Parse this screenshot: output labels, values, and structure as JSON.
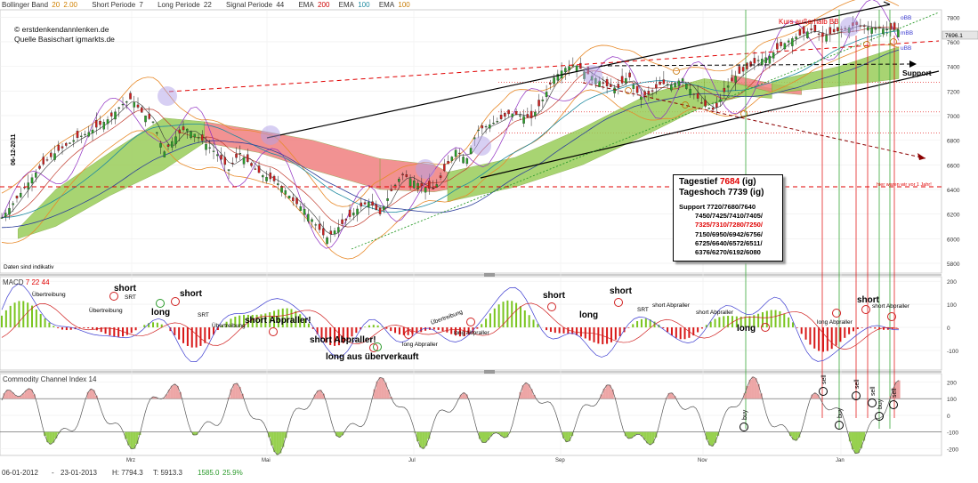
{
  "header": {
    "bollinger": {
      "label": "Bollinger Band",
      "v1": "20",
      "v2": "2.00"
    },
    "short_periode": {
      "label": "Short Periode",
      "v": "7"
    },
    "long_periode": {
      "label": "Long Periode",
      "v": "22"
    },
    "signal_periode": {
      "label": "Signal Periode",
      "v": "44"
    },
    "ema1": {
      "label": "EMA",
      "v": "200"
    },
    "ema2": {
      "label": "EMA",
      "v": "100"
    },
    "ema3": {
      "label": "EMA",
      "v": "100"
    }
  },
  "credit": {
    "line1": "© erstdenkendannlenken.de",
    "line2": "Quelle Basischart igmarkts.de"
  },
  "main_annotations": {
    "kurs_ausserhalb": "Kurs außerhalb BB",
    "support": "Support",
    "hier_waren": "hier waren wir vor 1 Jahr!",
    "daten": "Daten sind indikativ",
    "date_vertical": "06-12-2011",
    "obb": "oBB",
    "mbb": "mBB",
    "ubb": "uBB",
    "last_price": "7696.1"
  },
  "infobox": {
    "tagestief_label": "Tagestief",
    "tagestief_value": "7684",
    "tagestief_suffix": "(ig)",
    "tageshoch": "Tageshoch 7739 (ig)",
    "support_lines": [
      "Support 7720/7680/7640",
      "7450/7425/7410/7405/",
      "7325/7310/7280/7250/",
      "7150/6950/6942/6756/",
      "6725/6640/6572/6511/",
      "6376/6270/6192/6080"
    ]
  },
  "macd_title": {
    "label": "MACD",
    "v1": "7",
    "v2": "22",
    "v3": "44"
  },
  "macd_annotations": [
    {
      "text": "short",
      "big": true
    },
    {
      "text": "Übertreibung",
      "big": false
    },
    {
      "text": "short",
      "big": true
    },
    {
      "text": "SRT",
      "big": false
    },
    {
      "text": "Übertreibung",
      "big": false
    },
    {
      "text": "long",
      "big": true
    },
    {
      "text": "SRT",
      "big": false
    },
    {
      "text": "Übertreibung",
      "big": false
    },
    {
      "text": "short Abpraller!",
      "big": true
    },
    {
      "text": "short Abpraller!",
      "big": true
    },
    {
      "text": "long aus überverkauft",
      "big": true
    },
    {
      "text": "long Abpraller",
      "big": false
    },
    {
      "text": "Übertreibung",
      "big": false
    },
    {
      "text": "long Abpraller",
      "big": false
    },
    {
      "text": "short",
      "big": true
    },
    {
      "text": "long",
      "big": true
    },
    {
      "text": "short",
      "big": true
    },
    {
      "text": "SRT",
      "big": false
    },
    {
      "text": "short Abpraller",
      "big": false
    },
    {
      "text": "short Abpraller",
      "big": false
    },
    {
      "text": "long",
      "big": true
    },
    {
      "text": "long Abpraller",
      "big": false
    },
    {
      "text": "short",
      "big": true
    },
    {
      "text": "short Abpraller",
      "big": false
    }
  ],
  "cci_title": {
    "label": "Commodity Channel Index",
    "v": "14"
  },
  "cci_annotations": [
    "buy",
    "buy",
    "sell",
    "sell",
    "sell",
    "buy",
    "sell"
  ],
  "status": {
    "start": "06-01-2012",
    "sep": "-",
    "end": "23-01-2013",
    "h": "H: 7794.3",
    "t": "T: 5913.3",
    "chg": "1585.0",
    "pct": "25.9%"
  },
  "chart_data": [
    {
      "type": "line",
      "name": "price",
      "x_ticks": [
        "Mrz",
        "Mai",
        "Jul",
        "Sep",
        "Nov",
        "Jan"
      ],
      "yticks": [
        5800,
        6000,
        6200,
        6400,
        6600,
        6800,
        7000,
        7200,
        7400,
        7600,
        7800
      ],
      "ylim": [
        5720,
        7860
      ],
      "close_path": [
        [
          0,
          6170
        ],
        [
          4,
          6280
        ],
        [
          8,
          6400
        ],
        [
          12,
          6520
        ],
        [
          16,
          6620
        ],
        [
          20,
          6700
        ],
        [
          24,
          6760
        ],
        [
          28,
          6820
        ],
        [
          32,
          6860
        ],
        [
          36,
          6920
        ],
        [
          40,
          6980
        ],
        [
          44,
          7080
        ],
        [
          48,
          7140
        ],
        [
          52,
          7020
        ],
        [
          56,
          6950
        ],
        [
          60,
          6700
        ],
        [
          64,
          6820
        ],
        [
          68,
          6900
        ],
        [
          72,
          6840
        ],
        [
          76,
          6760
        ],
        [
          80,
          6680
        ],
        [
          84,
          6560
        ],
        [
          88,
          6700
        ],
        [
          92,
          6600
        ],
        [
          96,
          6520
        ],
        [
          100,
          6480
        ],
        [
          104,
          6420
        ],
        [
          108,
          6300
        ],
        [
          112,
          6240
        ],
        [
          116,
          6120
        ],
        [
          120,
          6000
        ],
        [
          124,
          6080
        ],
        [
          128,
          6160
        ],
        [
          132,
          6250
        ],
        [
          136,
          6300
        ],
        [
          140,
          6200
        ],
        [
          144,
          6380
        ],
        [
          148,
          6520
        ],
        [
          152,
          6480
        ],
        [
          156,
          6420
        ],
        [
          160,
          6400
        ],
        [
          164,
          6560
        ],
        [
          168,
          6720
        ],
        [
          172,
          6640
        ],
        [
          176,
          6880
        ],
        [
          180,
          6920
        ],
        [
          184,
          6960
        ],
        [
          188,
          7020
        ],
        [
          192,
          7000
        ],
        [
          196,
          6980
        ],
        [
          200,
          7120
        ],
        [
          204,
          7300
        ],
        [
          208,
          7380
        ],
        [
          212,
          7420
        ],
        [
          216,
          7350
        ],
        [
          220,
          7300
        ],
        [
          224,
          7240
        ],
        [
          228,
          7220
        ],
        [
          232,
          7330
        ],
        [
          236,
          7150
        ],
        [
          240,
          7180
        ],
        [
          244,
          7260
        ],
        [
          248,
          7250
        ],
        [
          252,
          7300
        ],
        [
          256,
          7180
        ],
        [
          260,
          7080
        ],
        [
          264,
          7040
        ],
        [
          268,
          7220
        ],
        [
          272,
          7330
        ],
        [
          276,
          7380
        ],
        [
          280,
          7450
        ],
        [
          284,
          7480
        ],
        [
          288,
          7560
        ],
        [
          292,
          7620
        ],
        [
          296,
          7660
        ],
        [
          300,
          7700
        ],
        [
          304,
          7640
        ],
        [
          308,
          7680
        ],
        [
          312,
          7700
        ],
        [
          316,
          7740
        ],
        [
          320,
          7720
        ],
        [
          324,
          7710
        ],
        [
          328,
          7700
        ],
        [
          332,
          7696
        ]
      ],
      "price_labels_x_scale": "days from left edge (0..332)",
      "annotations": {
        "support_levels": [
          "7720",
          "7680",
          "7640",
          "7450",
          "7425",
          "7410",
          "7405",
          "7325",
          "7310",
          "7280",
          "7250",
          "7150",
          "6950",
          "6942",
          "6756",
          "6725",
          "6640",
          "6572",
          "6511",
          "6376",
          "6270",
          "6192",
          "6080"
        ]
      }
    },
    {
      "type": "bar",
      "name": "MACD",
      "yticks": [
        -100,
        0,
        100,
        200
      ],
      "ylim": [
        -185,
        220
      ]
    },
    {
      "type": "area",
      "name": "CCI",
      "yticks": [
        -200,
        -100,
        0,
        100,
        200
      ],
      "ylim": [
        -240,
        250
      ]
    }
  ]
}
